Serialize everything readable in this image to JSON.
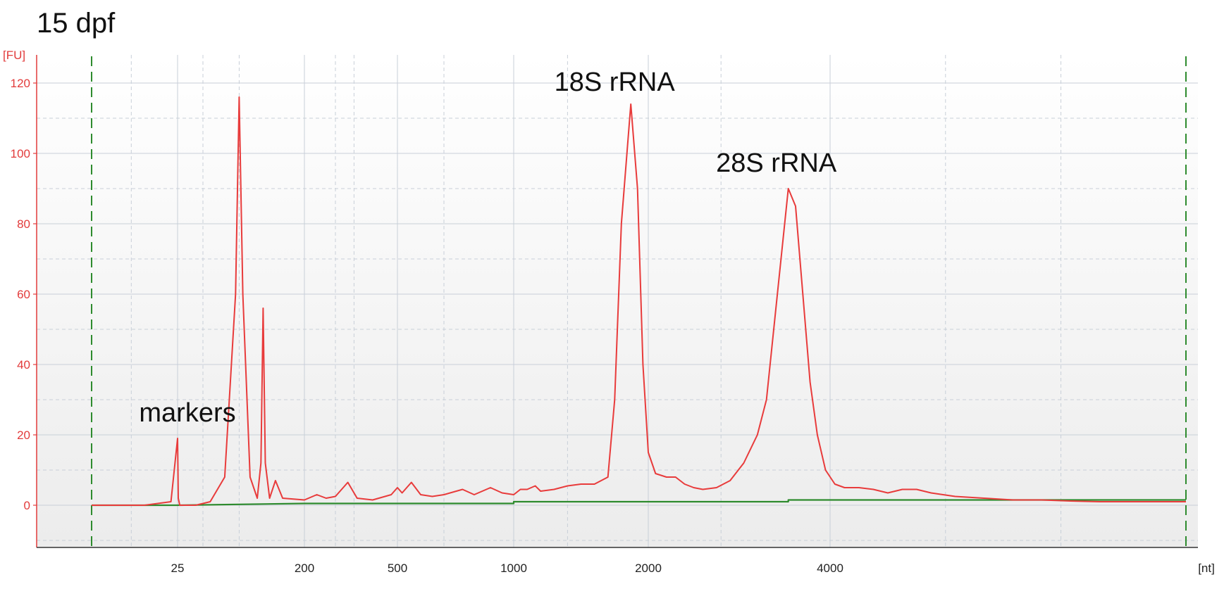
{
  "chart_data": {
    "type": "line",
    "title": "15 dpf",
    "ylabel": "[FU]",
    "xlabel": "[nt]",
    "ylim": [
      -12,
      128
    ],
    "yticks": [
      0,
      20,
      40,
      60,
      80,
      100,
      120
    ],
    "x_tick_labels": [
      "25",
      "200",
      "500",
      "1000",
      "2000",
      "4000"
    ],
    "grid": true,
    "colors": {
      "trace": "#e83b3b",
      "baseline": "#2e8b2e",
      "marker_line": "#2e8b2e",
      "grid": "#c8cfd8"
    },
    "annotations": [
      {
        "text": "markers",
        "x": 25,
        "y": 19
      },
      {
        "text": "18S rRNA",
        "x": 1870,
        "y": 114
      },
      {
        "text": "28S rRNA",
        "x": 3540,
        "y": 90
      }
    ],
    "series": [
      {
        "color": "#e83b3b",
        "points": [
          [
            12,
            0
          ],
          [
            20,
            0
          ],
          [
            24,
            1
          ],
          [
            25,
            19
          ],
          [
            26,
            2
          ],
          [
            28,
            0
          ],
          [
            50,
            0
          ],
          [
            70,
            1
          ],
          [
            90,
            8
          ],
          [
            105,
            60
          ],
          [
            110,
            116
          ],
          [
            115,
            60
          ],
          [
            125,
            8
          ],
          [
            135,
            2
          ],
          [
            140,
            12
          ],
          [
            143,
            56
          ],
          [
            146,
            12
          ],
          [
            152,
            2
          ],
          [
            160,
            7
          ],
          [
            170,
            2
          ],
          [
            200,
            1.5
          ],
          [
            240,
            3
          ],
          [
            270,
            2
          ],
          [
            300,
            2.5
          ],
          [
            340,
            6.5
          ],
          [
            370,
            2
          ],
          [
            420,
            1.5
          ],
          [
            480,
            3
          ],
          [
            500,
            5
          ],
          [
            520,
            3.5
          ],
          [
            560,
            6.5
          ],
          [
            600,
            3
          ],
          [
            650,
            2.5
          ],
          [
            700,
            3
          ],
          [
            780,
            4.5
          ],
          [
            830,
            3
          ],
          [
            900,
            5
          ],
          [
            950,
            3.5
          ],
          [
            1000,
            3
          ],
          [
            1050,
            4.5
          ],
          [
            1100,
            4.5
          ],
          [
            1160,
            5.5
          ],
          [
            1200,
            4
          ],
          [
            1300,
            4.5
          ],
          [
            1400,
            5.5
          ],
          [
            1500,
            6
          ],
          [
            1600,
            6
          ],
          [
            1700,
            8
          ],
          [
            1750,
            30
          ],
          [
            1800,
            80
          ],
          [
            1870,
            114
          ],
          [
            1920,
            90
          ],
          [
            1960,
            40
          ],
          [
            2000,
            15
          ],
          [
            2080,
            9
          ],
          [
            2200,
            8
          ],
          [
            2300,
            8
          ],
          [
            2400,
            6
          ],
          [
            2500,
            5
          ],
          [
            2600,
            4.5
          ],
          [
            2750,
            5
          ],
          [
            2900,
            7
          ],
          [
            3050,
            12
          ],
          [
            3200,
            20
          ],
          [
            3300,
            30
          ],
          [
            3400,
            55
          ],
          [
            3540,
            90
          ],
          [
            3620,
            85
          ],
          [
            3700,
            60
          ],
          [
            3780,
            35
          ],
          [
            3860,
            20
          ],
          [
            3950,
            10
          ],
          [
            4050,
            6
          ],
          [
            4150,
            5
          ],
          [
            4300,
            5
          ],
          [
            4450,
            4.5
          ],
          [
            4600,
            3.5
          ],
          [
            4750,
            4.5
          ],
          [
            4900,
            4.5
          ],
          [
            5050,
            3.5
          ],
          [
            5300,
            2.5
          ],
          [
            5600,
            2
          ],
          [
            5900,
            1.5
          ],
          [
            6200,
            1.5
          ],
          [
            6500,
            1.2
          ],
          [
            6800,
            1
          ],
          [
            7100,
            1
          ],
          [
            7400,
            1
          ],
          [
            7700,
            1
          ]
        ]
      },
      {
        "color": "#2e8b2e",
        "points": [
          [
            12,
            0
          ],
          [
            25,
            0
          ],
          [
            200,
            0.5
          ],
          [
            1000,
            0.5
          ],
          [
            1000,
            1
          ],
          [
            3540,
            1
          ],
          [
            3540,
            1.5
          ],
          [
            7700,
            1.5
          ]
        ]
      }
    ],
    "vertical_marker_lines_nt": [
      12,
      7700
    ]
  }
}
